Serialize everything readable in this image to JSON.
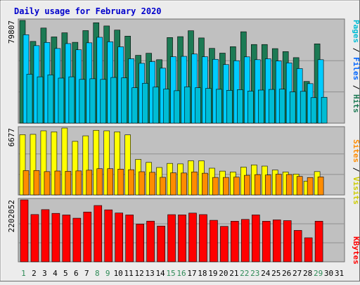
{
  "title": "Daily usage for February 2020",
  "colors": {
    "title": "#0000cc",
    "background": "#ececec",
    "panel": "#c0c0c0",
    "hits": "#1c7a54",
    "files": "#00ccff",
    "visits": "#ffff00",
    "sites": "#ff8c00",
    "kbytes": "#ff0000",
    "pages_label": "#00bcd4",
    "weekend_day": "#2e8b57",
    "weekday_day": "#000000"
  },
  "chart_data": [
    {
      "type": "bar",
      "categories": [
        "1",
        "2",
        "3",
        "4",
        "5",
        "6",
        "7",
        "8",
        "9",
        "10",
        "11",
        "12",
        "13",
        "14",
        "15",
        "16",
        "17",
        "18",
        "19",
        "20",
        "21",
        "22",
        "23",
        "24",
        "25",
        "26",
        "27",
        "28",
        "29",
        "30",
        "31"
      ],
      "weekend_days": [
        "1",
        "8",
        "9",
        "15",
        "16",
        "22",
        "23",
        "29"
      ],
      "series": [
        {
          "name": "Hits",
          "values": [
            79807,
            63500,
            73900,
            67000,
            70200,
            62800,
            71900,
            78000,
            75500,
            72300,
            67600,
            52700,
            54300,
            49300,
            66500,
            67200,
            71800,
            66200,
            58100,
            54400,
            59400,
            71000,
            61100,
            61100,
            57900,
            55600,
            50900,
            32400,
            61600,
            null,
            null
          ]
        },
        {
          "name": "Files",
          "values": [
            68700,
            60200,
            62700,
            58000,
            61800,
            57000,
            62400,
            66700,
            63200,
            59300,
            50000,
            46500,
            47800,
            42700,
            51600,
            51900,
            53700,
            51600,
            49600,
            45500,
            48500,
            51500,
            49300,
            50000,
            48300,
            46800,
            42400,
            30700,
            49300,
            null,
            null
          ]
        },
        {
          "name": "Pages",
          "values": [
            38000,
            36000,
            37500,
            35000,
            36000,
            34000,
            34500,
            34000,
            35500,
            35200,
            27500,
            31000,
            28000,
            26500,
            25200,
            28200,
            27500,
            27000,
            26300,
            25500,
            26000,
            24900,
            25700,
            26200,
            26400,
            24300,
            24700,
            19800,
            20100,
            null,
            null
          ]
        }
      ],
      "ylabel": "Pages / Files / Hits",
      "max_label": "79807",
      "ylim": [
        0,
        79807
      ]
    },
    {
      "type": "bar",
      "categories": [
        "1",
        "2",
        "3",
        "4",
        "5",
        "6",
        "7",
        "8",
        "9",
        "10",
        "11",
        "12",
        "13",
        "14",
        "15",
        "16",
        "17",
        "18",
        "19",
        "20",
        "21",
        "22",
        "23",
        "24",
        "25",
        "26",
        "27",
        "28",
        "29",
        "30",
        "31"
      ],
      "series": [
        {
          "name": "Visits",
          "values": [
            6020,
            6050,
            6400,
            6300,
            6677,
            5350,
            5900,
            6450,
            6400,
            6300,
            6000,
            3550,
            3250,
            2740,
            3150,
            3100,
            3410,
            3410,
            2670,
            2380,
            2290,
            2780,
            3000,
            2880,
            2490,
            2290,
            2080,
            1380,
            2330,
            null,
            null
          ]
        },
        {
          "name": "Sites",
          "values": [
            2430,
            2440,
            2330,
            2390,
            2360,
            2400,
            2470,
            2620,
            2620,
            2580,
            2520,
            2320,
            2260,
            1760,
            2210,
            2190,
            2300,
            2170,
            1750,
            1750,
            1780,
            1960,
            2030,
            1990,
            2070,
            2040,
            1850,
            1740,
            1800,
            null,
            null
          ]
        }
      ],
      "ylabel": "Sites / Visits",
      "max_label": "6677",
      "ylim": [
        0,
        6677
      ]
    },
    {
      "type": "bar",
      "categories": [
        "1",
        "2",
        "3",
        "4",
        "5",
        "6",
        "7",
        "8",
        "9",
        "10",
        "11",
        "12",
        "13",
        "14",
        "15",
        "16",
        "17",
        "18",
        "19",
        "20",
        "21",
        "22",
        "23",
        "24",
        "25",
        "26",
        "27",
        "28",
        "29",
        "30",
        "31"
      ],
      "series": [
        {
          "name": "KBytes",
          "values": [
            2202052,
            1680000,
            1855000,
            1722000,
            1665000,
            1550000,
            1770000,
            2001000,
            1847000,
            1735000,
            1666000,
            1340000,
            1446000,
            1271000,
            1676000,
            1669000,
            1731000,
            1678000,
            1475000,
            1259000,
            1443000,
            1507000,
            1667000,
            1442000,
            1490000,
            1464000,
            1116000,
            853000,
            1444000,
            null,
            null
          ]
        }
      ],
      "ylabel": "KBytes",
      "max_label": "2202052",
      "ylim": [
        0,
        2202052
      ]
    }
  ]
}
